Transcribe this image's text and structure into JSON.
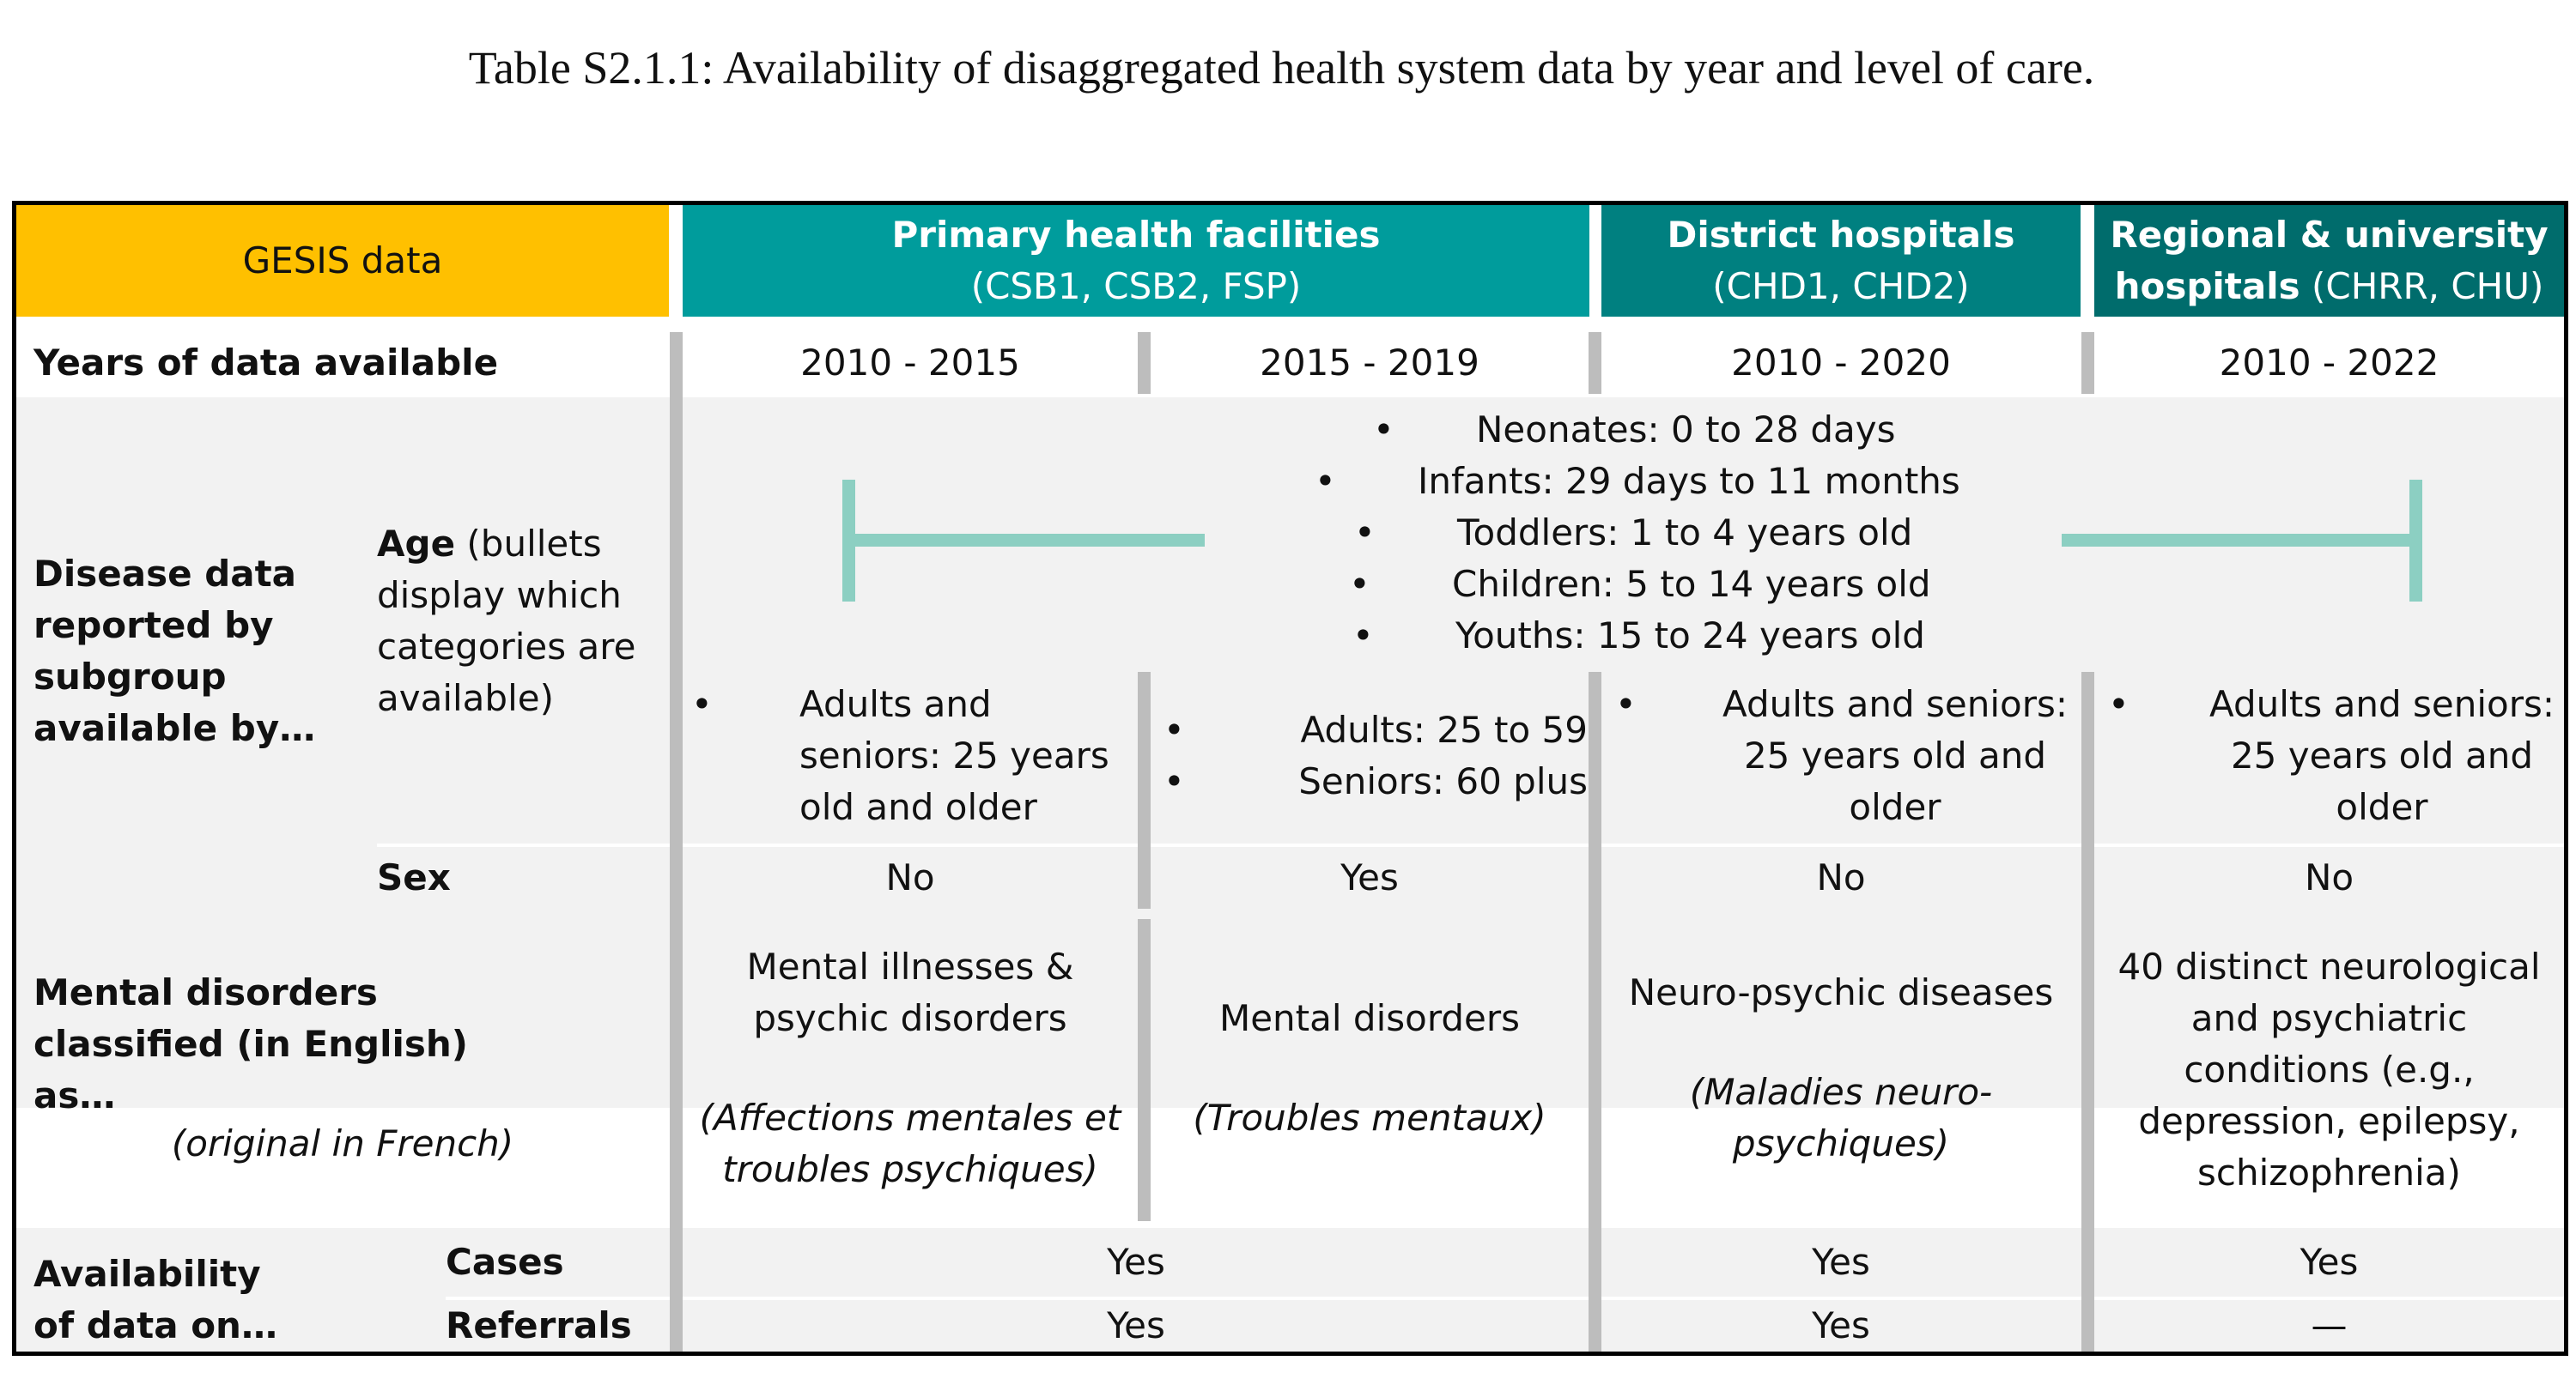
{
  "caption": "Table S2.1.1: Availability of disaggregated health system data by year and level of care.",
  "colors": {
    "gesis_header": "#FFC000",
    "primary_header": "#009C9C",
    "district_header": "#008080",
    "regional_header": "#006C6C",
    "bracket_line": "#8CCFC2",
    "row_shade": "#F2F2F2",
    "separator": "#BDBDBD"
  },
  "header": {
    "gesis": "GESIS data",
    "primary_title": "Primary health facilities",
    "primary_sub": "(CSB1, CSB2, FSP)",
    "district_title": "District hospitals",
    "district_sub": "(CHD1, CHD2)",
    "regional_title": "Regional & university",
    "regional_title2": "hospitals",
    "regional_sub": "(CHRR, CHU)"
  },
  "years": {
    "label": "Years of data available",
    "values": [
      "2010 - 2015",
      "2015 - 2019",
      "2010 - 2020",
      "2010 - 2022"
    ]
  },
  "disease": {
    "label": "Disease data reported by subgroup available by…",
    "age_label_bold": "Age",
    "age_label_rest": "(bullets display which categories are available)",
    "shared_bullets": [
      "Neonates: 0 to 28 days",
      "Infants: 29 days to 11 months",
      "Toddlers: 1 to 4 years old",
      "Children: 5 to 14 years old",
      "Youths: 15 to 24 years old"
    ],
    "adult_col1": "Adults and seniors: 25 years old and older",
    "adult_col2": [
      "Adults: 25 to 59",
      "Seniors: 60 plus"
    ],
    "adult_col3": "Adults and seniors: 25 years old and older",
    "adult_col4": "Adults and seniors: 25 years old and older",
    "sex_label": "Sex",
    "sex_values": [
      "No",
      "Yes",
      "No",
      "No"
    ]
  },
  "mental": {
    "label": "Mental disorders classified (in English) as…",
    "orig_note": "(original in French)",
    "col1_en": "Mental illnesses & psychic disorders",
    "col1_fr": "(Affections mentales et troubles psychiques)",
    "col2_en": "Mental disorders",
    "col2_fr": "(Troubles mentaux)",
    "col3_en": "Neuro-psychic diseases",
    "col3_fr": "(Maladies neuro-psychiques)",
    "col4_en": "40 distinct neurological and psychiatric conditions (e.g., depression, epilepsy, schizophrenia)"
  },
  "availability": {
    "label": "Availability of data on…",
    "cases_label": "Cases",
    "referrals_label": "Referrals",
    "cases_values": [
      "Yes",
      "Yes",
      "Yes"
    ],
    "referrals_values": [
      "Yes",
      "Yes",
      "—"
    ]
  }
}
